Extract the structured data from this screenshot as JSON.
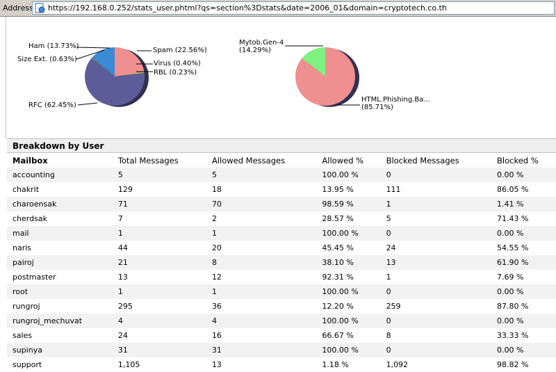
{
  "address_bar": {
    "label": "Address",
    "url": "https://192.168.0.252/stats_user.phtml?qs=section%3Dstats&date=2006_01&domain=cryptotech.co.th"
  },
  "colors": {
    "spam": "#f08f8f",
    "virus": "#c8c840",
    "rbl": "#50c050",
    "rfc": "#5c5c98",
    "size_ext": "#707070",
    "ham": "#3a8ad4",
    "html_phishing": "#f08f8f",
    "mytob": "#80f080"
  },
  "chart_data": [
    {
      "type": "pie",
      "labels": [
        "Spam (22.56%)",
        "Virus (0.40%)",
        "RBL (0.23%)",
        "RFC (62.45%)",
        "Size Ext. (0.63%)",
        "Ham (13.73%)"
      ],
      "values": [
        22.56,
        0.4,
        0.23,
        62.45,
        0.63,
        13.73
      ]
    },
    {
      "type": "pie",
      "labels": [
        "HTML.Phishing.Ba...\n(85.71%)",
        "Mytob.Gen-4\n(14.29%)"
      ],
      "values": [
        85.71,
        14.29
      ]
    }
  ],
  "breakdown": {
    "title": "Breakdown by User",
    "columns": [
      "Mailbox",
      "Total Messages",
      "Allowed Messages",
      "Allowed %",
      "Blocked Messages",
      "Blocked %"
    ],
    "rows": [
      [
        "accounting",
        "5",
        "5",
        "100.00 %",
        "0",
        "0.00 %"
      ],
      [
        "chakrit",
        "129",
        "18",
        "13.95 %",
        "111",
        "86.05 %"
      ],
      [
        "charoensak",
        "71",
        "70",
        "98.59 %",
        "1",
        "1.41 %"
      ],
      [
        "cherdsak",
        "7",
        "2",
        "28.57 %",
        "5",
        "71.43 %"
      ],
      [
        "mail",
        "1",
        "1",
        "100.00 %",
        "0",
        "0.00 %"
      ],
      [
        "naris",
        "44",
        "20",
        "45.45 %",
        "24",
        "54.55 %"
      ],
      [
        "pairoj",
        "21",
        "8",
        "38.10 %",
        "13",
        "61.90 %"
      ],
      [
        "postmaster",
        "13",
        "12",
        "92.31 %",
        "1",
        "7.69 %"
      ],
      [
        "root",
        "1",
        "1",
        "100.00 %",
        "0",
        "0.00 %"
      ],
      [
        "rungroj",
        "295",
        "36",
        "12.20 %",
        "259",
        "87.80 %"
      ],
      [
        "rungroj_mechuvat",
        "4",
        "4",
        "100.00 %",
        "0",
        "0.00 %"
      ],
      [
        "sales",
        "24",
        "16",
        "66.67 %",
        "8",
        "33.33 %"
      ],
      [
        "supinya",
        "31",
        "31",
        "100.00 %",
        "0",
        "0.00 %"
      ],
      [
        "support",
        "1,105",
        "13",
        "1.18 %",
        "1,092",
        "98.82 %"
      ]
    ]
  }
}
